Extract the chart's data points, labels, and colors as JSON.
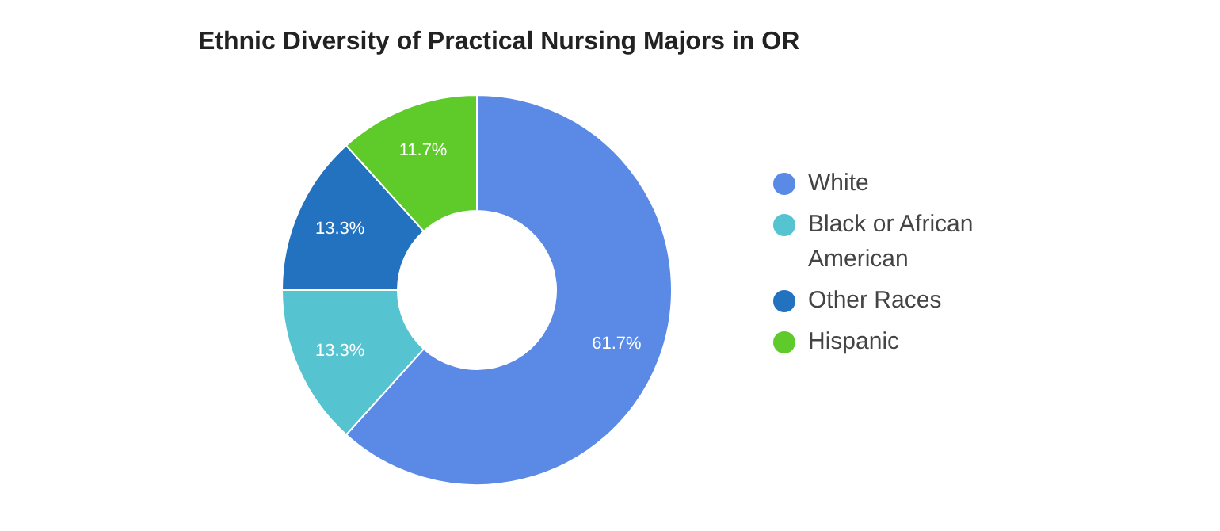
{
  "chart_data": {
    "type": "donut",
    "title": "Ethnic Diversity of Practical Nursing Majors in OR",
    "categories": [
      "White",
      "Black or African American",
      "Other Races",
      "Hispanic"
    ],
    "values": [
      61.7,
      13.3,
      13.3,
      11.7
    ],
    "colors": [
      "#5b8ae6",
      "#56c3d0",
      "#2272c0",
      "#5ecb2b"
    ],
    "value_labels": [
      "61.7%",
      "13.3%",
      "13.3%",
      "11.7%"
    ],
    "legend": "right"
  }
}
